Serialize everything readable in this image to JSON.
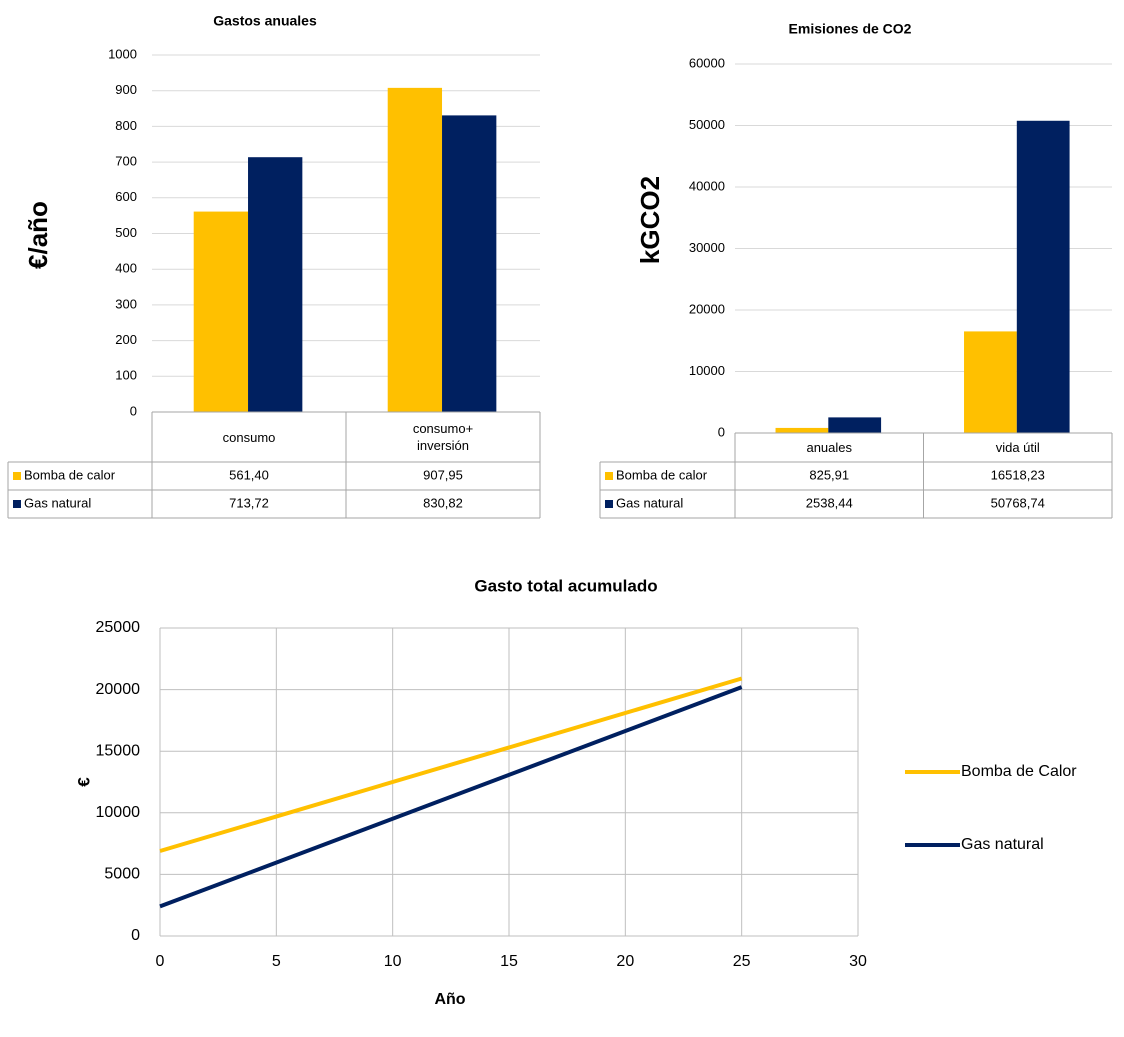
{
  "chart_data": [
    {
      "type": "bar",
      "title": "Gastos anuales",
      "ylabel": "€/año",
      "categories": [
        "consumo",
        "consumo+ inversión"
      ],
      "series": [
        {
          "name": "Bomba de calor",
          "color": "#ffc000",
          "values": [
            561.4,
            907.95
          ],
          "value_labels": [
            "561,40",
            "907,95"
          ]
        },
        {
          "name": "Gas natural",
          "color": "#002060",
          "values": [
            713.72,
            830.82
          ],
          "value_labels": [
            "713,72",
            "830,82"
          ]
        }
      ],
      "ylim": [
        0,
        1000
      ],
      "yticks": [
        0,
        100,
        200,
        300,
        400,
        500,
        600,
        700,
        800,
        900,
        1000
      ],
      "grid": true,
      "data_table": true
    },
    {
      "type": "bar",
      "title": "Emisiones de CO2",
      "ylabel": "kGCO2",
      "categories": [
        "anuales",
        "vida útil"
      ],
      "series": [
        {
          "name": "Bomba de calor",
          "color": "#ffc000",
          "values": [
            825.91,
            16518.23
          ],
          "value_labels": [
            "825,91",
            "16518,23"
          ]
        },
        {
          "name": "Gas natural",
          "color": "#002060",
          "values": [
            2538.44,
            50768.74
          ],
          "value_labels": [
            "2538,44",
            "50768,74"
          ]
        }
      ],
      "ylim": [
        0,
        60000
      ],
      "yticks": [
        0,
        10000,
        20000,
        30000,
        40000,
        50000,
        60000
      ],
      "grid": true,
      "data_table": true
    },
    {
      "type": "line",
      "title": "Gasto total acumulado",
      "xlabel": "Año",
      "ylabel": "€",
      "x": [
        0,
        25
      ],
      "series": [
        {
          "name": "Bomba de Calor",
          "color": "#ffc000",
          "values": [
            6900,
            20900
          ]
        },
        {
          "name": "Gas natural",
          "color": "#002060",
          "values": [
            2400,
            20200
          ]
        }
      ],
      "xlim": [
        0,
        30
      ],
      "xticks": [
        0,
        5,
        10,
        15,
        20,
        25,
        30
      ],
      "ylim": [
        0,
        25000
      ],
      "yticks": [
        0,
        5000,
        10000,
        15000,
        20000,
        25000
      ],
      "grid": true,
      "legend": "right"
    }
  ]
}
